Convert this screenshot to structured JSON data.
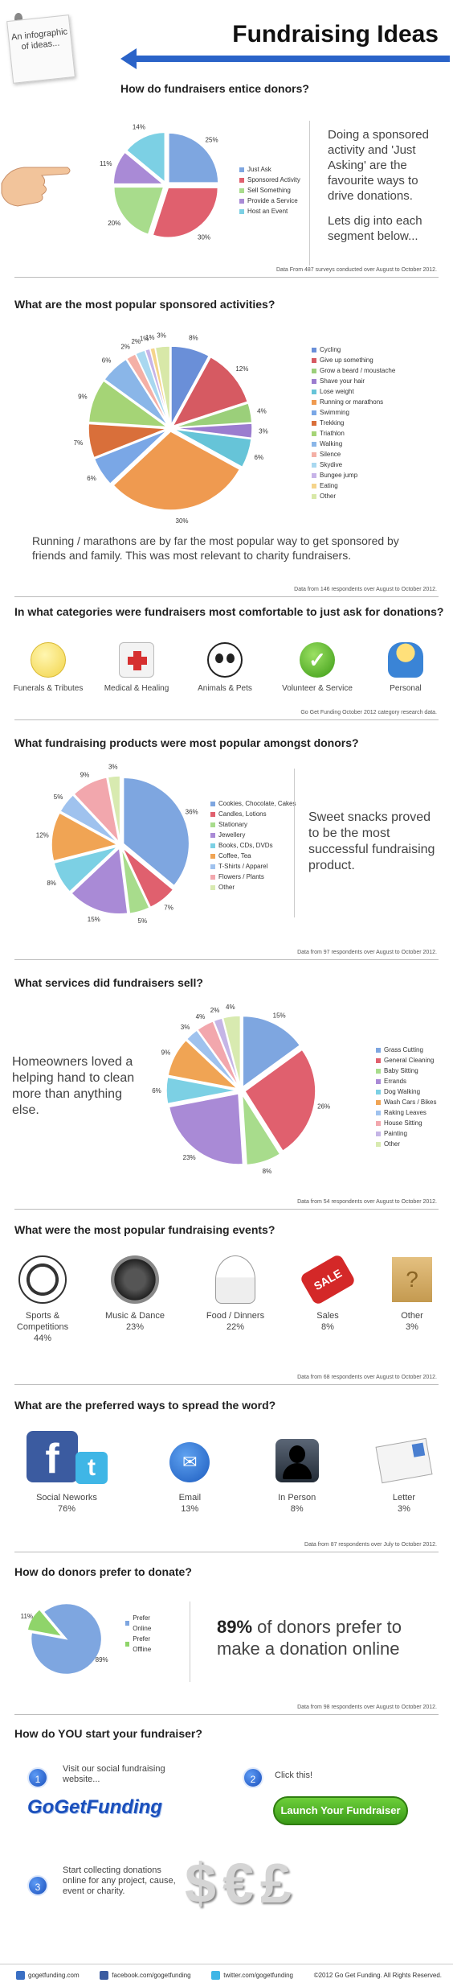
{
  "header": {
    "note": "An infographic of ideas...",
    "title": "Fundraising Ideas"
  },
  "s1": {
    "question": "How do fundraisers entice donors?",
    "text": "Doing a sponsored activity and 'Just Asking' are the favourite ways to drive donations.",
    "text2": "Lets dig into each segment below...",
    "source": "Data From 487 surveys conducted over August to October 2012.",
    "chart_data": {
      "type": "pie",
      "categories": [
        "Just Ask",
        "Sponsored Activity",
        "Sell Something",
        "Provide a Service",
        "Host an Event"
      ],
      "values": [
        25,
        30,
        20,
        11,
        14
      ],
      "colors": [
        "#7ea6e0",
        "#e0606e",
        "#a8dc8c",
        "#a98ad6",
        "#7cd0e4"
      ]
    },
    "labels": [
      "25%",
      "30%",
      "20%",
      "11%",
      "14%"
    ]
  },
  "s2": {
    "question": "What are the most popular sponsored activities?",
    "text": "Running / marathons are by far the most popular way to get sponsored by friends and family. This was most relevant to charity fundraisers.",
    "source": "Data from 146 respondents over August to October 2012.",
    "chart_data": {
      "type": "pie",
      "categories": [
        "Cycling",
        "Give up something",
        "Grow a beard / moustache",
        "Shave your hair",
        "Lose weight",
        "Running or marathons",
        "Swimming",
        "Trekking",
        "Triathlon",
        "Walking",
        "Silence",
        "Skydive",
        "Bungee jump",
        "Eating",
        "Other"
      ],
      "values": [
        8,
        12,
        4,
        3,
        6,
        30,
        6,
        7,
        9,
        6,
        2,
        2,
        1,
        1,
        3
      ],
      "colors": [
        "#6a8fd8",
        "#d65a62",
        "#9bcf7a",
        "#9b7ccf",
        "#66c4d8",
        "#ef9a50",
        "#7aa7e6",
        "#d96f3a",
        "#a5d476",
        "#8ab6e8",
        "#f4b0a6",
        "#a9d8f0",
        "#c7b3e8",
        "#f5d48b",
        "#d8e8a8"
      ]
    },
    "labels": [
      "8%",
      "12%",
      "4%",
      "3%",
      "6%",
      "30%",
      "6%",
      "7%",
      "9%",
      "6%",
      "2%",
      "2%",
      "1%",
      "1%",
      "3%"
    ]
  },
  "s3": {
    "question": "In what categories were fundraisers most comfortable to just ask for donations?",
    "source": "Go Get Funding October 2012 category research data.",
    "items": [
      {
        "label": "Funerals & Tributes",
        "icon": "angel-icon"
      },
      {
        "label": "Medical & Healing",
        "icon": "first-aid-icon"
      },
      {
        "label": "Animals & Pets",
        "icon": "panda-icon"
      },
      {
        "label": "Volunteer & Service",
        "icon": "checkmark-icon"
      },
      {
        "label": "Personal",
        "icon": "person-icon"
      }
    ]
  },
  "s4": {
    "question": "What fundraising products were most popular amongst donors?",
    "text": "Sweet snacks proved to be the most successful fundraising product.",
    "source": "Data from 97 respondents over August to October 2012.",
    "chart_data": {
      "type": "pie",
      "categories": [
        "Cookies, Chocolate, Cakes",
        "Candles, Lotions",
        "Stationary",
        "Jewellery",
        "Books, CDs, DVDs",
        "Coffee, Tea",
        "T-Shirts / Apparel",
        "Flowers / Plants",
        "Other"
      ],
      "values": [
        36,
        7,
        5,
        15,
        8,
        12,
        5,
        9,
        3
      ],
      "colors": [
        "#7ea6e0",
        "#e0606e",
        "#a8dc8c",
        "#a98ad6",
        "#7cd0e4",
        "#f0a454",
        "#9fc2ee",
        "#f2a7ad",
        "#d8eab0"
      ]
    },
    "labels": [
      "36%",
      "7%",
      "5%",
      "15%",
      "8%",
      "12%",
      "5%",
      "9%",
      "3%"
    ]
  },
  "s5": {
    "question": "What services did fundraisers sell?",
    "text": "Homeowners loved a helping hand to clean more than anything else.",
    "source": "Data from 54 respondents over August to October 2012.",
    "chart_data": {
      "type": "pie",
      "categories": [
        "Grass Cutting",
        "General Cleaning",
        "Baby Sitting",
        "Errands",
        "Dog Walking",
        "Wash Cars / Bikes",
        "Raking Leaves",
        "House Sitting",
        "Painting",
        "Other"
      ],
      "values": [
        15,
        26,
        8,
        23,
        6,
        9,
        3,
        4,
        2,
        4
      ],
      "colors": [
        "#7ea6e0",
        "#e0606e",
        "#a8dc8c",
        "#a98ad6",
        "#7cd0e4",
        "#f0a454",
        "#9fc2ee",
        "#f2a7ad",
        "#c5b5e6",
        "#d8eab0"
      ]
    },
    "labels": [
      "15%",
      "26%",
      "8%",
      "23%",
      "6%",
      "9%",
      "3%",
      "4%",
      "2%",
      "4%"
    ]
  },
  "s6": {
    "question": "What were the most popular fundraising events?",
    "source": "Data from 68 respondents over August to October 2012.",
    "items": [
      {
        "label": "Sports & Competitions",
        "value": "44%",
        "icon": "soccer-ball-icon"
      },
      {
        "label": "Music & Dance",
        "value": "23%",
        "icon": "speaker-icon"
      },
      {
        "label": "Food / Dinners",
        "value": "22%",
        "icon": "chef-icon"
      },
      {
        "label": "Sales",
        "value": "8%",
        "icon": "sale-tag-icon"
      },
      {
        "label": "Other",
        "value": "3%",
        "icon": "question-box-icon"
      }
    ]
  },
  "s7": {
    "question": "What are the preferred ways to spread the word?",
    "source": "Data from 87 respondents over July to October 2012.",
    "items": [
      {
        "label": "Social Neworks",
        "value": "76%",
        "icon": "facebook-twitter-icon"
      },
      {
        "label": "Email",
        "value": "13%",
        "icon": "email-icon"
      },
      {
        "label": "In Person",
        "value": "8%",
        "icon": "person-silhouette-icon"
      },
      {
        "label": "Letter",
        "value": "3%",
        "icon": "letter-icon"
      }
    ]
  },
  "s8": {
    "question": "How do donors prefer to donate?",
    "big": "89%",
    "text": " of donors prefer to make a donation online",
    "source": "Data from 98 respondents over August to October 2012.",
    "chart_data": {
      "type": "pie",
      "categories": [
        "Prefer Online",
        "Prefer Offline"
      ],
      "values": [
        89,
        11
      ],
      "colors": [
        "#7ea6e0",
        "#8fd46a"
      ]
    },
    "labels": [
      "89%",
      "11%"
    ]
  },
  "s9": {
    "question": "How do YOU start your fundraiser?",
    "step1": "Visit our social fundraising website...",
    "brand": "GoGetFunding",
    "step2": "Click this!",
    "button": "Launch Your Fundraiser",
    "step3": "Start collecting donations online for any project, cause, event or charity.",
    "n1": "1",
    "n2": "2",
    "n3": "3"
  },
  "footer": {
    "site": "gogetfunding.com",
    "facebook": "facebook.com/gogetfunding",
    "twitter": "twitter.com/gogetfunding",
    "copyright": "©2012 Go Get Funding. All Rights Reserved."
  }
}
